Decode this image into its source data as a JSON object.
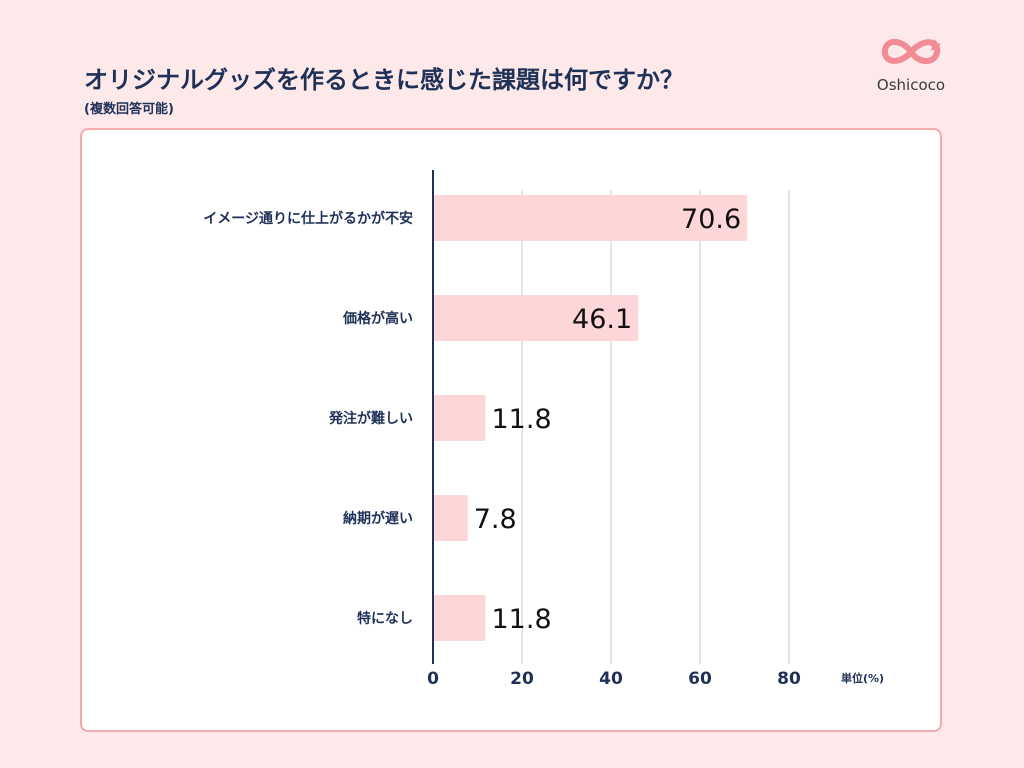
{
  "header": {
    "title": "オリジナルグッズを作るときに感じた課題は何ですか？",
    "subtitle": "(複数回答可能)"
  },
  "logo": {
    "text": "Oshicoco",
    "icon": "infinity-heart-icon",
    "color": "#f28b93"
  },
  "chart_data": {
    "type": "bar",
    "orientation": "horizontal",
    "categories": [
      "イメージ通りに仕上がるかが不安",
      "価格が高い",
      "発注が難しい",
      "納期が遅い",
      "特になし"
    ],
    "values": [
      70.6,
      46.1,
      11.8,
      7.8,
      11.8
    ],
    "xlim": [
      0,
      80
    ],
    "xticks": [
      0,
      20,
      40,
      60,
      80
    ],
    "unit_label": "単位(%)",
    "grid": true,
    "bar_color": "#fdd6d7",
    "axis_color": "#1f3157"
  }
}
